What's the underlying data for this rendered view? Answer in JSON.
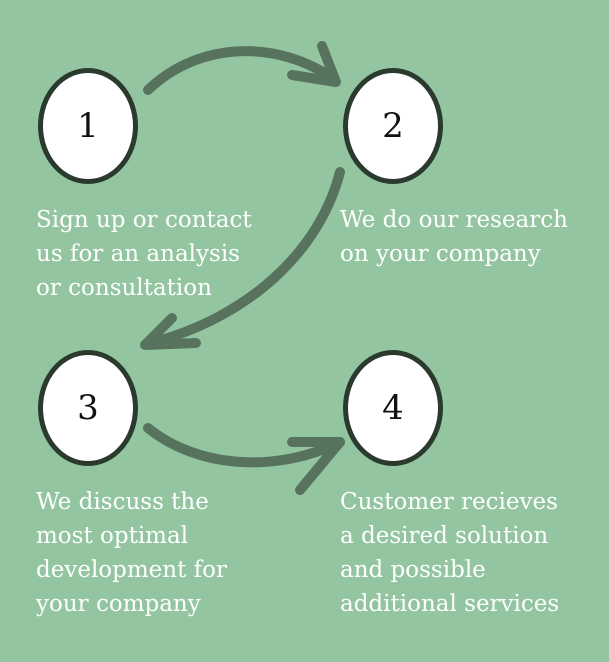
{
  "colors": {
    "background": "#93c6a0",
    "circle_fill": "#ffffff",
    "circle_border": "#2b3a2e",
    "arrow": "#57735d",
    "text": "#ffffff"
  },
  "steps": [
    {
      "number": "1",
      "lines": [
        "Sign up or contact",
        "us for an analysis",
        "or consultation"
      ]
    },
    {
      "number": "2",
      "lines": [
        "We do our research",
        "on your company"
      ]
    },
    {
      "number": "3",
      "lines": [
        "We discuss the",
        "most optimal",
        "development for",
        "your company"
      ]
    },
    {
      "number": "4",
      "lines": [
        "Customer recieves",
        "a desired solution",
        "and possible",
        "additional services"
      ]
    }
  ],
  "icons": {
    "connector": "curved-arrow-icon"
  }
}
